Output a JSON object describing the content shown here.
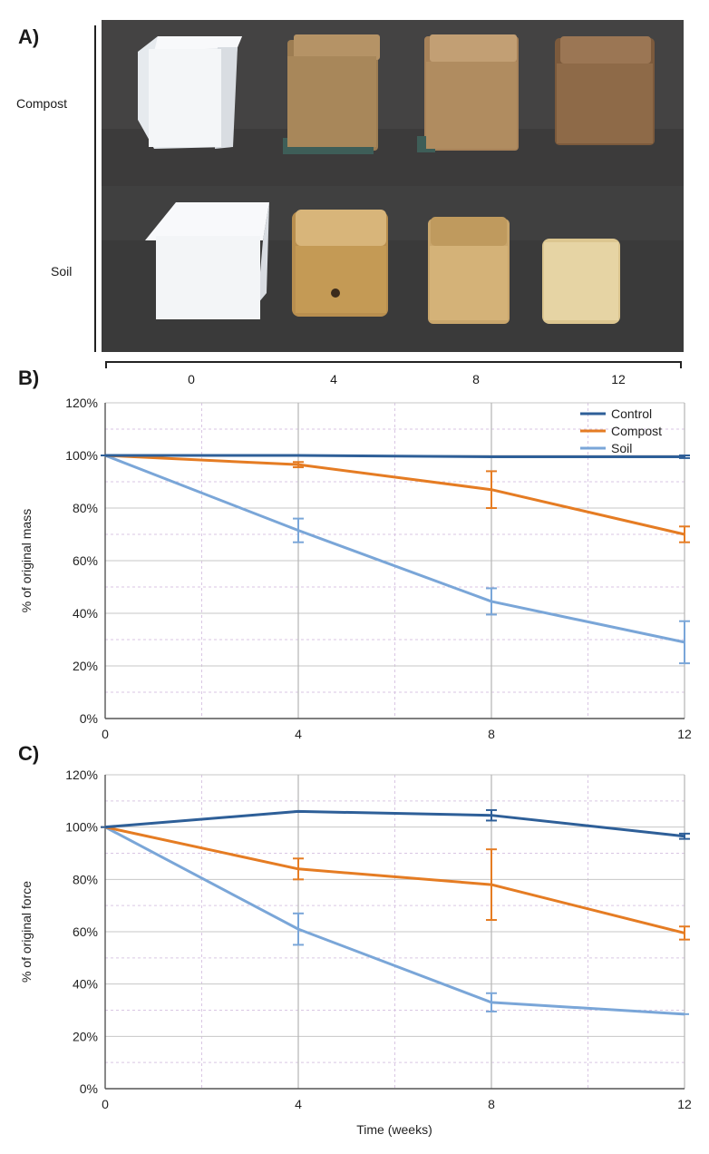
{
  "panels": {
    "a_label": "A)",
    "b_label": "B)",
    "c_label": "C)"
  },
  "photo_rows": [
    {
      "label": "Compost",
      "cube_colors": [
        "#f4f6f8",
        "#a8875a",
        "#b08c60",
        "#8e6a48"
      ]
    },
    {
      "label": "Soil",
      "cube_colors": [
        "#f3f5f7",
        "#c49a55",
        "#d4b278",
        "#e6d4a4"
      ]
    }
  ],
  "photo_axis_ticks": [
    "0",
    "4",
    "8",
    "12"
  ],
  "colors": {
    "control": "#2e5f98",
    "compost": "#e57c23",
    "soil": "#7aa6d8",
    "photo_bg": "#3c3b3b"
  },
  "chart_data": [
    {
      "type": "line",
      "ylabel": "% of original mass",
      "xlabel": "",
      "xticks": [
        "0",
        "4",
        "8",
        "12"
      ],
      "yticks": [
        "0%",
        "20%",
        "40%",
        "60%",
        "80%",
        "100%",
        "120%"
      ],
      "xlim": [
        0,
        12
      ],
      "ylim": [
        0,
        120
      ],
      "grid": true,
      "legend": "top-right",
      "series": [
        {
          "name": "Control",
          "key": "control",
          "x": [
            0,
            4,
            8,
            12
          ],
          "y": [
            100,
            100,
            99.5,
            99.5
          ],
          "err": [
            0,
            0,
            0,
            0.5
          ]
        },
        {
          "name": "Compost",
          "key": "compost",
          "x": [
            0,
            4,
            8,
            12
          ],
          "y": [
            100,
            96.5,
            87,
            70
          ],
          "err": [
            0,
            1,
            7,
            3
          ]
        },
        {
          "name": "Soil",
          "key": "soil",
          "x": [
            0,
            4,
            8,
            12
          ],
          "y": [
            100,
            71.5,
            44.5,
            29
          ],
          "err": [
            0,
            4.5,
            5,
            8
          ]
        }
      ]
    },
    {
      "type": "line",
      "ylabel": "% of original force",
      "xlabel": "Time (weeks)",
      "xticks": [
        "0",
        "4",
        "8",
        "12"
      ],
      "yticks": [
        "0%",
        "20%",
        "40%",
        "60%",
        "80%",
        "100%",
        "120%"
      ],
      "xlim": [
        0,
        12
      ],
      "ylim": [
        0,
        120
      ],
      "grid": true,
      "legend": "none",
      "series": [
        {
          "name": "Control",
          "key": "control",
          "x": [
            0,
            4,
            8,
            12
          ],
          "y": [
            100,
            106,
            104.5,
            96.5
          ],
          "err": [
            0,
            0,
            2,
            1
          ]
        },
        {
          "name": "Compost",
          "key": "compost",
          "x": [
            0,
            4,
            8,
            12
          ],
          "y": [
            100,
            84,
            78,
            59.5
          ],
          "err": [
            0,
            4,
            13.5,
            2.5
          ]
        },
        {
          "name": "Soil",
          "key": "soil",
          "x": [
            0,
            4,
            8,
            12
          ],
          "y": [
            100,
            61,
            33,
            28.5
          ],
          "err": [
            0,
            6,
            3.5,
            0
          ]
        }
      ]
    }
  ]
}
